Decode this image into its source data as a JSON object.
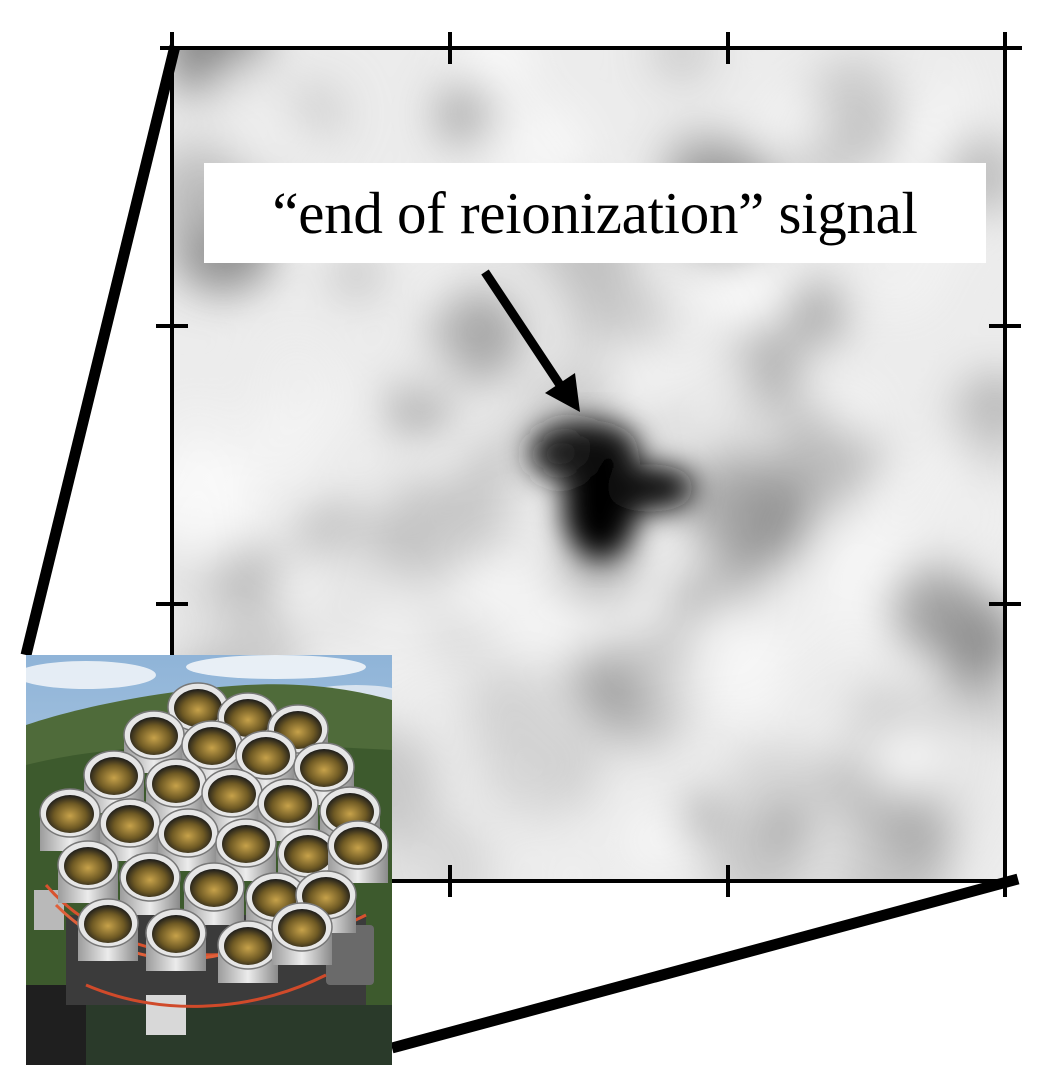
{
  "annotation": {
    "label": "“end of reionization” signal"
  },
  "map": {
    "colormap": "grayscale",
    "ticks_per_side": 3
  },
  "inset_photo": {
    "subject": "telescope-lens-array",
    "lens_count": 24
  },
  "colors": {
    "frame": "#000000",
    "signal_dark": "#050505",
    "background_light": "#f2f2f2",
    "sky": "#a9c6e2",
    "lens_body": "#d9d9d9",
    "cable": "#d8522e"
  }
}
